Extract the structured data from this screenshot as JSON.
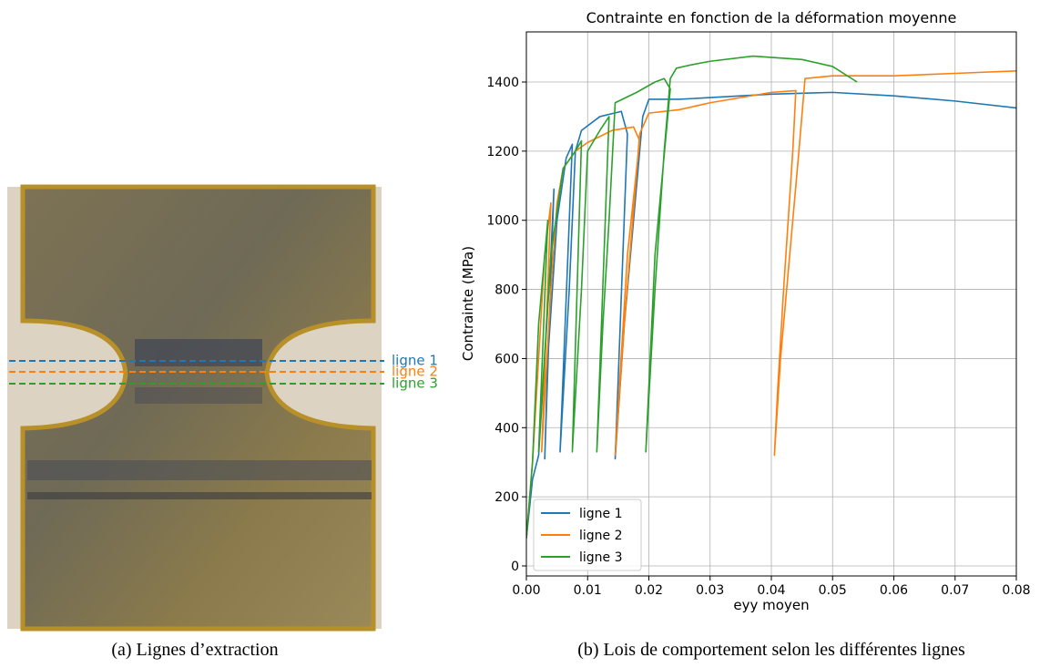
{
  "photo": {
    "lines": [
      {
        "label": "ligne 1",
        "color": "#1f77b4"
      },
      {
        "label": "ligne 2",
        "color": "#ff7f0e"
      },
      {
        "label": "ligne 3",
        "color": "#2ca02c"
      }
    ],
    "caption": "(a) Lignes d’extraction"
  },
  "chart_caption": "(b) Lois de comportement selon les différentes lignes",
  "chart_data": {
    "type": "line",
    "title": "Contrainte en fonction de la déformation moyenne",
    "x_label": "eyy moyen",
    "y_label": "Contrainte (MPa)",
    "xlim": [
      0,
      0.08
    ],
    "ylim": [
      -29,
      1545
    ],
    "xticks": [
      {
        "value": 0,
        "label": "0.00"
      },
      0.01,
      0.02,
      0.03,
      0.04,
      0.05,
      0.06,
      0.07,
      0.08
    ],
    "yticks": [
      0,
      200,
      400,
      600,
      800,
      1000,
      1200,
      1400
    ],
    "grid": true,
    "legend": "lower left",
    "series": [
      {
        "name": "ligne 1",
        "color": "#1f77b4",
        "x": [
          0,
          0.001,
          0.002,
          0.003,
          0.004,
          0.0045,
          0.003,
          0.0035,
          0.005,
          0.0065,
          0.0075,
          0.0055,
          0.007,
          0.008,
          0.009,
          0.012,
          0.0155,
          0.0165,
          0.0145,
          0.016,
          0.018,
          0.019,
          0.02,
          0.025,
          0.03,
          0.04,
          0.05,
          0.06,
          0.07,
          0.08
        ],
        "values": [
          80,
          250,
          320,
          600,
          900,
          1090,
          310,
          600,
          1000,
          1180,
          1220,
          330,
          800,
          1200,
          1260,
          1300,
          1315,
          1250,
          310,
          700,
          1100,
          1300,
          1350,
          1350,
          1355,
          1365,
          1370,
          1360,
          1345,
          1325
        ]
      },
      {
        "name": "ligne 2",
        "color": "#ff7f0e",
        "x": [
          0,
          0.001,
          0.002,
          0.003,
          0.004,
          0.0025,
          0.004,
          0.005,
          0.006,
          0.008,
          0.01,
          0.014,
          0.0175,
          0.0185,
          0.0165,
          0.0145,
          0.016,
          0.0185,
          0.02,
          0.025,
          0.03,
          0.04,
          0.044,
          0.0435,
          0.042,
          0.041,
          0.0405,
          0.0415,
          0.043,
          0.0445,
          0.0455,
          0.05,
          0.06,
          0.07,
          0.08
        ],
        "values": [
          80,
          300,
          600,
          900,
          1050,
          330,
          800,
          1050,
          1150,
          1200,
          1225,
          1260,
          1270,
          1230,
          900,
          320,
          700,
          1250,
          1310,
          1320,
          1340,
          1370,
          1375,
          1200,
          800,
          500,
          320,
          600,
          900,
          1200,
          1410,
          1418,
          1418,
          1425,
          1432
        ]
      },
      {
        "name": "ligne 3",
        "color": "#2ca02c",
        "x": [
          0,
          0.001,
          0.002,
          0.003,
          0.0035,
          0.002,
          0.004,
          0.006,
          0.008,
          0.009,
          0.0075,
          0.009,
          0.01,
          0.012,
          0.0135,
          0.0115,
          0.0125,
          0.0135,
          0.0145,
          0.018,
          0.021,
          0.0225,
          0.0235,
          0.021,
          0.0195,
          0.021,
          0.0225,
          0.0235,
          0.0245,
          0.027,
          0.03,
          0.037,
          0.045,
          0.05,
          0.054
        ],
        "values": [
          80,
          300,
          700,
          900,
          1000,
          330,
          900,
          1150,
          1200,
          1230,
          330,
          800,
          1200,
          1260,
          1300,
          330,
          700,
          1000,
          1340,
          1370,
          1400,
          1410,
          1380,
          900,
          330,
          800,
          1200,
          1410,
          1440,
          1450,
          1460,
          1475,
          1465,
          1445,
          1400
        ]
      }
    ]
  }
}
